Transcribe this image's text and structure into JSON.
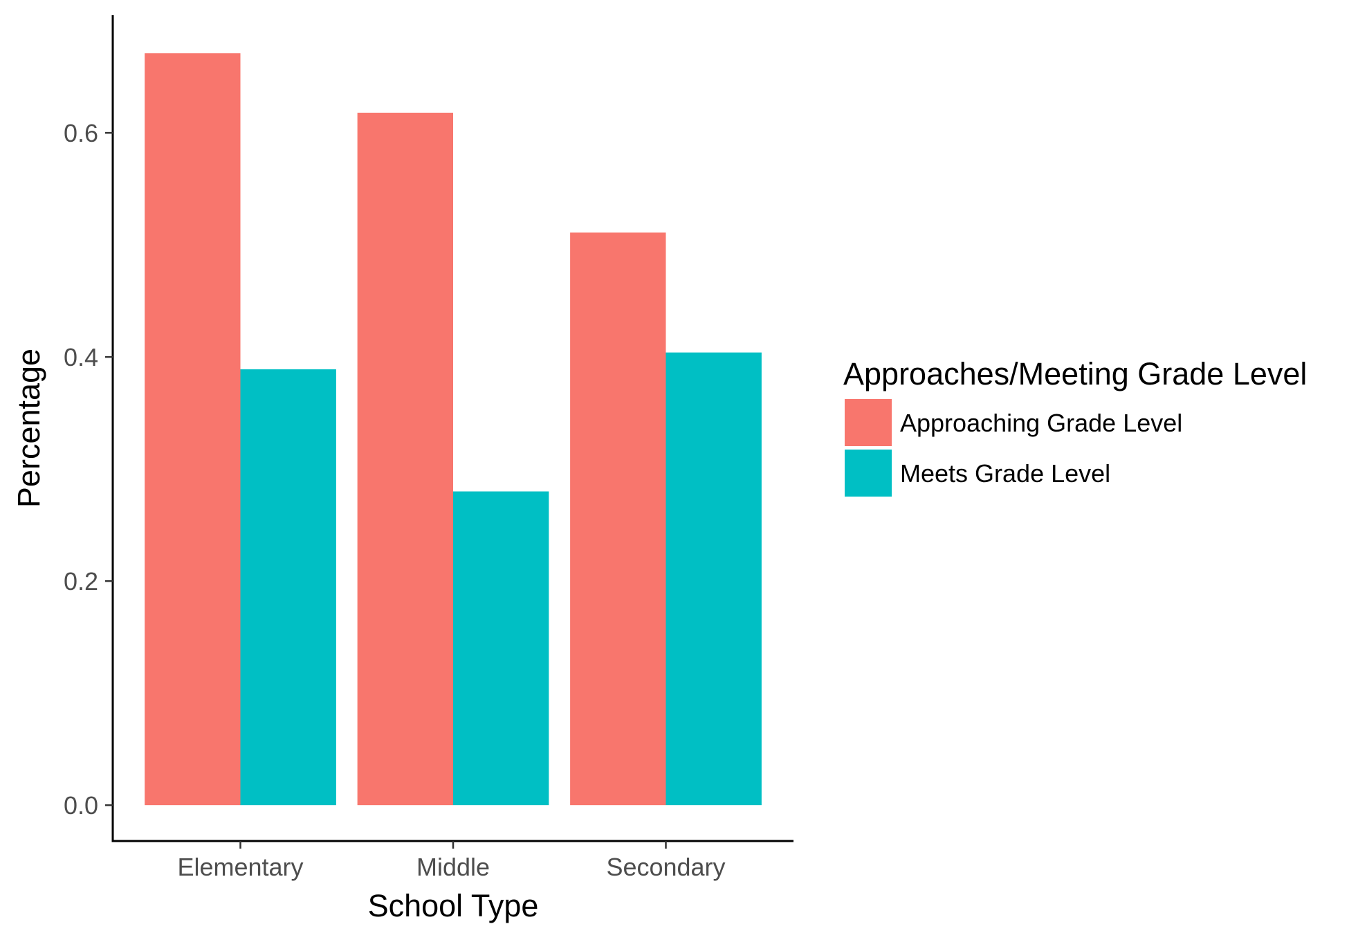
{
  "chart_data": {
    "type": "bar",
    "title": "",
    "xlabel": "School Type",
    "ylabel": "Percentage",
    "categories": [
      "Elementary",
      "Middle",
      "Secondary"
    ],
    "series": [
      {
        "name": "Approaching Grade Level",
        "color": "#F8766D",
        "values": [
          0.671,
          0.618,
          0.511
        ]
      },
      {
        "name": "Meets Grade Level",
        "color": "#00BFC4",
        "values": [
          0.389,
          0.28,
          0.404
        ]
      }
    ],
    "ylim": [
      -0.032,
      0.705
    ],
    "yticks": [
      0.0,
      0.2,
      0.4,
      0.6
    ],
    "ytick_labels": [
      "0.0",
      "0.2",
      "0.4",
      "0.6"
    ],
    "grid": false,
    "legend": {
      "title": "Approaches/Meeting Grade Level",
      "placement": "right"
    }
  }
}
